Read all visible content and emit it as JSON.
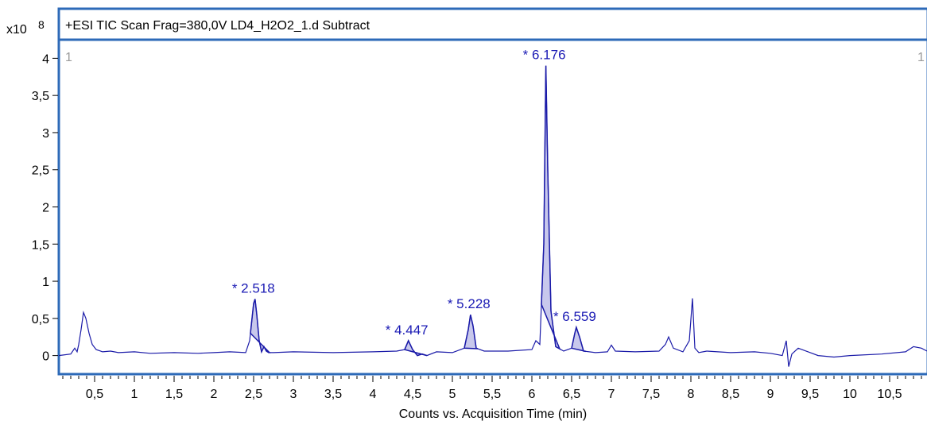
{
  "chart_data": {
    "type": "line",
    "title": "+ESI TIC Scan Frag=380,0V LD4_H2O2_1.d  Subtract",
    "xlabel": "Counts vs. Acquisition Time (min)",
    "y_multiplier_label": "x10",
    "y_multiplier_exponent": "8",
    "corner_left": "1",
    "corner_right": "1",
    "xlim": [
      0.05,
      10.97
    ],
    "ylim": [
      -0.25,
      4.25
    ],
    "grid": false,
    "x_ticks": [
      {
        "v": 0.5,
        "label": "0,5"
      },
      {
        "v": 1,
        "label": "1"
      },
      {
        "v": 1.5,
        "label": "1,5"
      },
      {
        "v": 2,
        "label": "2"
      },
      {
        "v": 2.5,
        "label": "2,5"
      },
      {
        "v": 3,
        "label": "3"
      },
      {
        "v": 3.5,
        "label": "3,5"
      },
      {
        "v": 4,
        "label": "4"
      },
      {
        "v": 4.5,
        "label": "4,5"
      },
      {
        "v": 5,
        "label": "5"
      },
      {
        "v": 5.5,
        "label": "5,5"
      },
      {
        "v": 6,
        "label": "6"
      },
      {
        "v": 6.5,
        "label": "6,5"
      },
      {
        "v": 7,
        "label": "7"
      },
      {
        "v": 7.5,
        "label": "7,5"
      },
      {
        "v": 8,
        "label": "8"
      },
      {
        "v": 8.5,
        "label": "8,5"
      },
      {
        "v": 9,
        "label": "9"
      },
      {
        "v": 9.5,
        "label": "9,5"
      },
      {
        "v": 10,
        "label": "10"
      },
      {
        "v": 10.5,
        "label": "10,5"
      }
    ],
    "y_ticks": [
      {
        "v": 0,
        "label": "0"
      },
      {
        "v": 0.5,
        "label": "0,5"
      },
      {
        "v": 1,
        "label": "1"
      },
      {
        "v": 1.5,
        "label": "1,5"
      },
      {
        "v": 2,
        "label": "2"
      },
      {
        "v": 2.5,
        "label": "2,5"
      },
      {
        "v": 3,
        "label": "3"
      },
      {
        "v": 3.5,
        "label": "3,5"
      },
      {
        "v": 4,
        "label": "4"
      }
    ],
    "series": [
      {
        "color": "#1a1aa8",
        "x": [
          0.05,
          0.2,
          0.25,
          0.28,
          0.3,
          0.33,
          0.36,
          0.39,
          0.43,
          0.47,
          0.52,
          0.6,
          0.7,
          0.8,
          1.0,
          1.2,
          1.5,
          1.8,
          2.0,
          2.2,
          2.4,
          2.45,
          2.48,
          2.5,
          2.518,
          2.54,
          2.57,
          2.6,
          2.63,
          2.66,
          2.69,
          2.75,
          3.0,
          3.5,
          4.0,
          4.3,
          4.4,
          4.447,
          4.5,
          4.56,
          4.62,
          4.68,
          4.8,
          5.0,
          5.15,
          5.2,
          5.228,
          5.26,
          5.3,
          5.4,
          5.7,
          6.0,
          6.05,
          6.1,
          6.15,
          6.176,
          6.2,
          6.24,
          6.3,
          6.4,
          6.5,
          6.54,
          6.559,
          6.6,
          6.65,
          6.8,
          6.95,
          7.0,
          7.05,
          7.3,
          7.6,
          7.68,
          7.72,
          7.78,
          7.9,
          7.98,
          8.02,
          8.05,
          8.1,
          8.2,
          8.5,
          8.8,
          9.0,
          9.15,
          9.2,
          9.23,
          9.27,
          9.35,
          9.6,
          9.8,
          10.0,
          10.4,
          10.7,
          10.8,
          10.9,
          10.97
        ],
        "y": [
          0.0,
          0.02,
          0.1,
          0.05,
          0.15,
          0.35,
          0.58,
          0.5,
          0.3,
          0.15,
          0.08,
          0.05,
          0.06,
          0.04,
          0.05,
          0.03,
          0.04,
          0.03,
          0.04,
          0.05,
          0.04,
          0.2,
          0.5,
          0.7,
          0.76,
          0.55,
          0.2,
          0.05,
          0.12,
          0.06,
          0.04,
          0.04,
          0.05,
          0.04,
          0.05,
          0.06,
          0.08,
          0.2,
          0.08,
          0.0,
          0.02,
          0.0,
          0.05,
          0.04,
          0.1,
          0.35,
          0.55,
          0.4,
          0.1,
          0.06,
          0.06,
          0.08,
          0.2,
          0.15,
          1.5,
          3.9,
          2.5,
          0.6,
          0.12,
          0.06,
          0.1,
          0.3,
          0.38,
          0.25,
          0.06,
          0.04,
          0.05,
          0.14,
          0.06,
          0.05,
          0.06,
          0.15,
          0.25,
          0.1,
          0.05,
          0.2,
          0.77,
          0.1,
          0.04,
          0.06,
          0.04,
          0.05,
          0.03,
          0.0,
          0.2,
          -0.15,
          0.02,
          0.1,
          0.0,
          -0.02,
          0.0,
          0.02,
          0.05,
          0.12,
          0.1,
          0.06
        ]
      }
    ],
    "peaks": [
      {
        "label": "* 2.518",
        "x": 2.518,
        "y": 0.76,
        "x0": 2.46,
        "x1": 2.7
      },
      {
        "label": "* 4.447",
        "x": 4.447,
        "y": 0.2,
        "x0": 4.4,
        "x1": 4.68
      },
      {
        "label": "* 5.228",
        "x": 5.228,
        "y": 0.55,
        "x0": 5.15,
        "x1": 5.32
      },
      {
        "label": "* 6.176",
        "x": 6.176,
        "y": 3.9,
        "x0": 6.12,
        "x1": 6.35
      },
      {
        "label": "* 6.559",
        "x": 6.559,
        "y": 0.38,
        "x0": 6.5,
        "x1": 6.68
      }
    ],
    "fill_color": "#c8c8ec",
    "frame_color": "#2d6ab8",
    "label_color": "#1a1ab4"
  }
}
